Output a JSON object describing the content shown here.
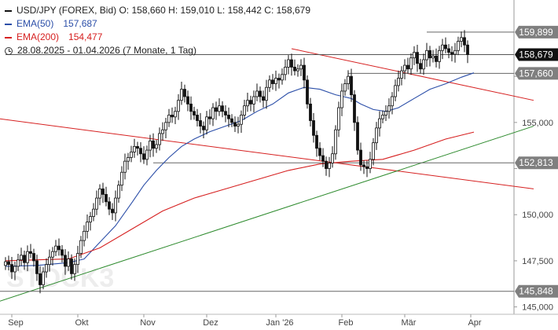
{
  "legend": {
    "symbol_line": "USD/JPY (FOREX, Bid)  O: 158,660  H: 159,010  L: 158,442  C: 158,679",
    "ema50_label": "EMA(50)",
    "ema50_value": "157,687",
    "ema200_label": "EMA(200)",
    "ema200_value": "154,477",
    "range_line": "28.08.2025 - 01.04.2026   (7 Monate, 1 Tag)"
  },
  "watermark": "STOCK3",
  "colors": {
    "price": "#111111",
    "ema50": "#2b4ea8",
    "ema200": "#d62020",
    "trend_red": "#d62020",
    "trend_green": "#2e8b2e",
    "label_bg": "#7f7f7f",
    "current_bg": "#111111"
  },
  "chart_data": {
    "type": "candlestick",
    "y_axis_position": "right",
    "ylim": [
      144.6,
      161.0
    ],
    "y_ticks": [
      145000,
      147500,
      150000,
      152500,
      155000,
      157500
    ],
    "y_tick_labels": [
      "145,000",
      "147,500",
      "150,000",
      "",
      "155,000",
      ""
    ],
    "x_ticks": [
      {
        "label": "Sep",
        "bar": 2
      },
      {
        "label": "Okt",
        "bar": 23
      },
      {
        "label": "Nov",
        "bar": 44
      },
      {
        "label": "Dez",
        "bar": 64
      },
      {
        "label": "Jan '26",
        "bar": 86
      },
      {
        "label": "Feb",
        "bar": 107
      },
      {
        "label": "Mär",
        "bar": 127
      },
      {
        "label": "Apr",
        "bar": 148
      }
    ],
    "close": [
      147.45,
      147.3,
      146.9,
      147.2,
      147.55,
      147.8,
      147.4,
      148.0,
      147.9,
      147.5,
      146.8,
      146.2,
      146.9,
      147.3,
      147.7,
      148.0,
      148.3,
      148.1,
      147.8,
      147.2,
      147.6,
      146.8,
      147.3,
      147.9,
      148.6,
      149.1,
      149.6,
      149.9,
      150.3,
      150.9,
      151.4,
      151.1,
      150.7,
      150.3,
      150.1,
      150.9,
      151.6,
      152.3,
      152.9,
      153.1,
      153.4,
      153.7,
      153.6,
      153.3,
      153.0,
      153.5,
      154.0,
      153.6,
      153.8,
      154.4,
      154.6,
      155.0,
      155.4,
      155.3,
      155.6,
      156.2,
      156.8,
      156.4,
      156.0,
      155.6,
      155.4,
      155.1,
      154.8,
      154.6,
      155.3,
      155.2,
      155.8,
      155.6,
      155.9,
      155.6,
      155.4,
      155.2,
      155.0,
      154.8,
      154.9,
      155.4,
      155.9,
      156.2,
      156.0,
      156.4,
      156.7,
      156.4,
      156.2,
      156.9,
      157.3,
      157.1,
      157.4,
      157.3,
      157.6,
      158.0,
      158.4,
      158.0,
      157.8,
      157.9,
      158.1,
      157.3,
      156.0,
      155.1,
      154.3,
      153.6,
      153.2,
      152.9,
      152.5,
      152.8,
      153.3,
      154.6,
      155.8,
      156.7,
      157.1,
      157.5,
      156.5,
      155.0,
      153.5,
      152.7,
      152.6,
      152.5,
      153.0,
      153.9,
      154.7,
      155.2,
      155.4,
      155.6,
      155.9,
      156.4,
      157.0,
      157.4,
      157.8,
      158.1,
      157.9,
      158.5,
      158.8,
      158.2,
      157.9,
      158.4,
      158.9,
      158.5,
      158.6,
      158.3,
      158.9,
      159.2,
      159.0,
      158.8,
      158.7,
      158.9,
      159.4,
      159.6,
      159.2,
      158.68
    ],
    "series": [
      {
        "name": "EMA(50)",
        "values": [
          {
            "bar": 0,
            "y": 147.2
          },
          {
            "bar": 10,
            "y": 147.25
          },
          {
            "bar": 20,
            "y": 147.4
          },
          {
            "bar": 25,
            "y": 147.6
          },
          {
            "bar": 30,
            "y": 148.5
          },
          {
            "bar": 35,
            "y": 149.4
          },
          {
            "bar": 40,
            "y": 150.6
          },
          {
            "bar": 44,
            "y": 151.6
          },
          {
            "bar": 48,
            "y": 152.4
          },
          {
            "bar": 52,
            "y": 153.1
          },
          {
            "bar": 56,
            "y": 153.7
          },
          {
            "bar": 60,
            "y": 154.1
          },
          {
            "bar": 65,
            "y": 154.5
          },
          {
            "bar": 70,
            "y": 154.8
          },
          {
            "bar": 75,
            "y": 155.1
          },
          {
            "bar": 80,
            "y": 155.6
          },
          {
            "bar": 85,
            "y": 156.0
          },
          {
            "bar": 90,
            "y": 156.6
          },
          {
            "bar": 95,
            "y": 156.9
          },
          {
            "bar": 100,
            "y": 156.8
          },
          {
            "bar": 105,
            "y": 156.5
          },
          {
            "bar": 110,
            "y": 156.3
          },
          {
            "bar": 113,
            "y": 156.0
          },
          {
            "bar": 117,
            "y": 155.7
          },
          {
            "bar": 121,
            "y": 155.6
          },
          {
            "bar": 125,
            "y": 155.8
          },
          {
            "bar": 130,
            "y": 156.3
          },
          {
            "bar": 135,
            "y": 156.8
          },
          {
            "bar": 140,
            "y": 157.1
          },
          {
            "bar": 145,
            "y": 157.45
          },
          {
            "bar": 149,
            "y": 157.69
          }
        ]
      },
      {
        "name": "EMA(200)",
        "values": [
          {
            "bar": 0,
            "y": 147.5
          },
          {
            "bar": 10,
            "y": 147.55
          },
          {
            "bar": 20,
            "y": 147.6
          },
          {
            "bar": 30,
            "y": 148.2
          },
          {
            "bar": 40,
            "y": 149.2
          },
          {
            "bar": 50,
            "y": 150.2
          },
          {
            "bar": 60,
            "y": 150.9
          },
          {
            "bar": 70,
            "y": 151.4
          },
          {
            "bar": 80,
            "y": 151.9
          },
          {
            "bar": 90,
            "y": 152.4
          },
          {
            "bar": 100,
            "y": 152.75
          },
          {
            "bar": 110,
            "y": 152.9
          },
          {
            "bar": 120,
            "y": 153.0
          },
          {
            "bar": 130,
            "y": 153.5
          },
          {
            "bar": 140,
            "y": 154.1
          },
          {
            "bar": 149,
            "y": 154.48
          }
        ]
      }
    ],
    "trendlines": [
      {
        "color": "red",
        "from": {
          "bar": -2,
          "y": 155.2
        },
        "to": {
          "bar": 168,
          "y": 151.4
        }
      },
      {
        "color": "red",
        "from": {
          "bar": 91,
          "y": 159.0
        },
        "to": {
          "bar": 168,
          "y": 156.2
        }
      },
      {
        "color": "green",
        "from": {
          "bar": -2,
          "y": 145.3
        },
        "to": {
          "bar": 168,
          "y": 154.8
        }
      }
    ],
    "horizontal_levels": [
      {
        "y": 159.899,
        "label": "159,899",
        "from_bar": 134
      },
      {
        "y": 158.679,
        "label": "158,679",
        "from_bar": 0,
        "current": true
      },
      {
        "y": 157.66,
        "label": "157,660",
        "from_bar": 109
      },
      {
        "y": 152.813,
        "label": "152,813",
        "from_bar": 47
      },
      {
        "y": 145.848,
        "label": "145,848",
        "from_bar": -2
      }
    ]
  }
}
